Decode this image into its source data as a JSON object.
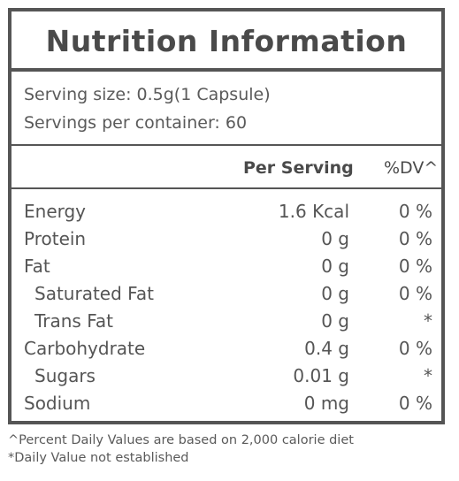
{
  "label": {
    "title": "Nutrition Information",
    "serving_size": "Serving size: 0.5g(1 Capsule)",
    "servings_per_container": "Servings per container: 60",
    "columns": {
      "per_serving": "Per Serving",
      "dv": "%DV^"
    },
    "rows": [
      {
        "name": "Energy",
        "amount": "1.6 Kcal",
        "dv": "0 %"
      },
      {
        "name": "Protein",
        "amount": "0 g",
        "dv": "0 %"
      },
      {
        "name": "Fat",
        "amount": "0 g",
        "dv": "0 %"
      },
      {
        "name": "Saturated Fat",
        "amount": "0 g",
        "dv": "0 %"
      },
      {
        "name": "Trans Fat",
        "amount": "0 g",
        "dv": "*"
      },
      {
        "name": "Carbohydrate",
        "amount": "0.4 g",
        "dv": "0 %"
      },
      {
        "name": "Sugars",
        "amount": "0.01 g",
        "dv": "*"
      },
      {
        "name": "Sodium",
        "amount": "0 mg",
        "dv": "0 %"
      }
    ]
  },
  "footnotes": {
    "dv_basis": "^Percent Daily Values are based on 2,000 calorie diet",
    "not_established": "*Daily Value not established"
  },
  "colors": {
    "text": "#4a4a4a",
    "border": "#555555",
    "background": "#ffffff"
  }
}
